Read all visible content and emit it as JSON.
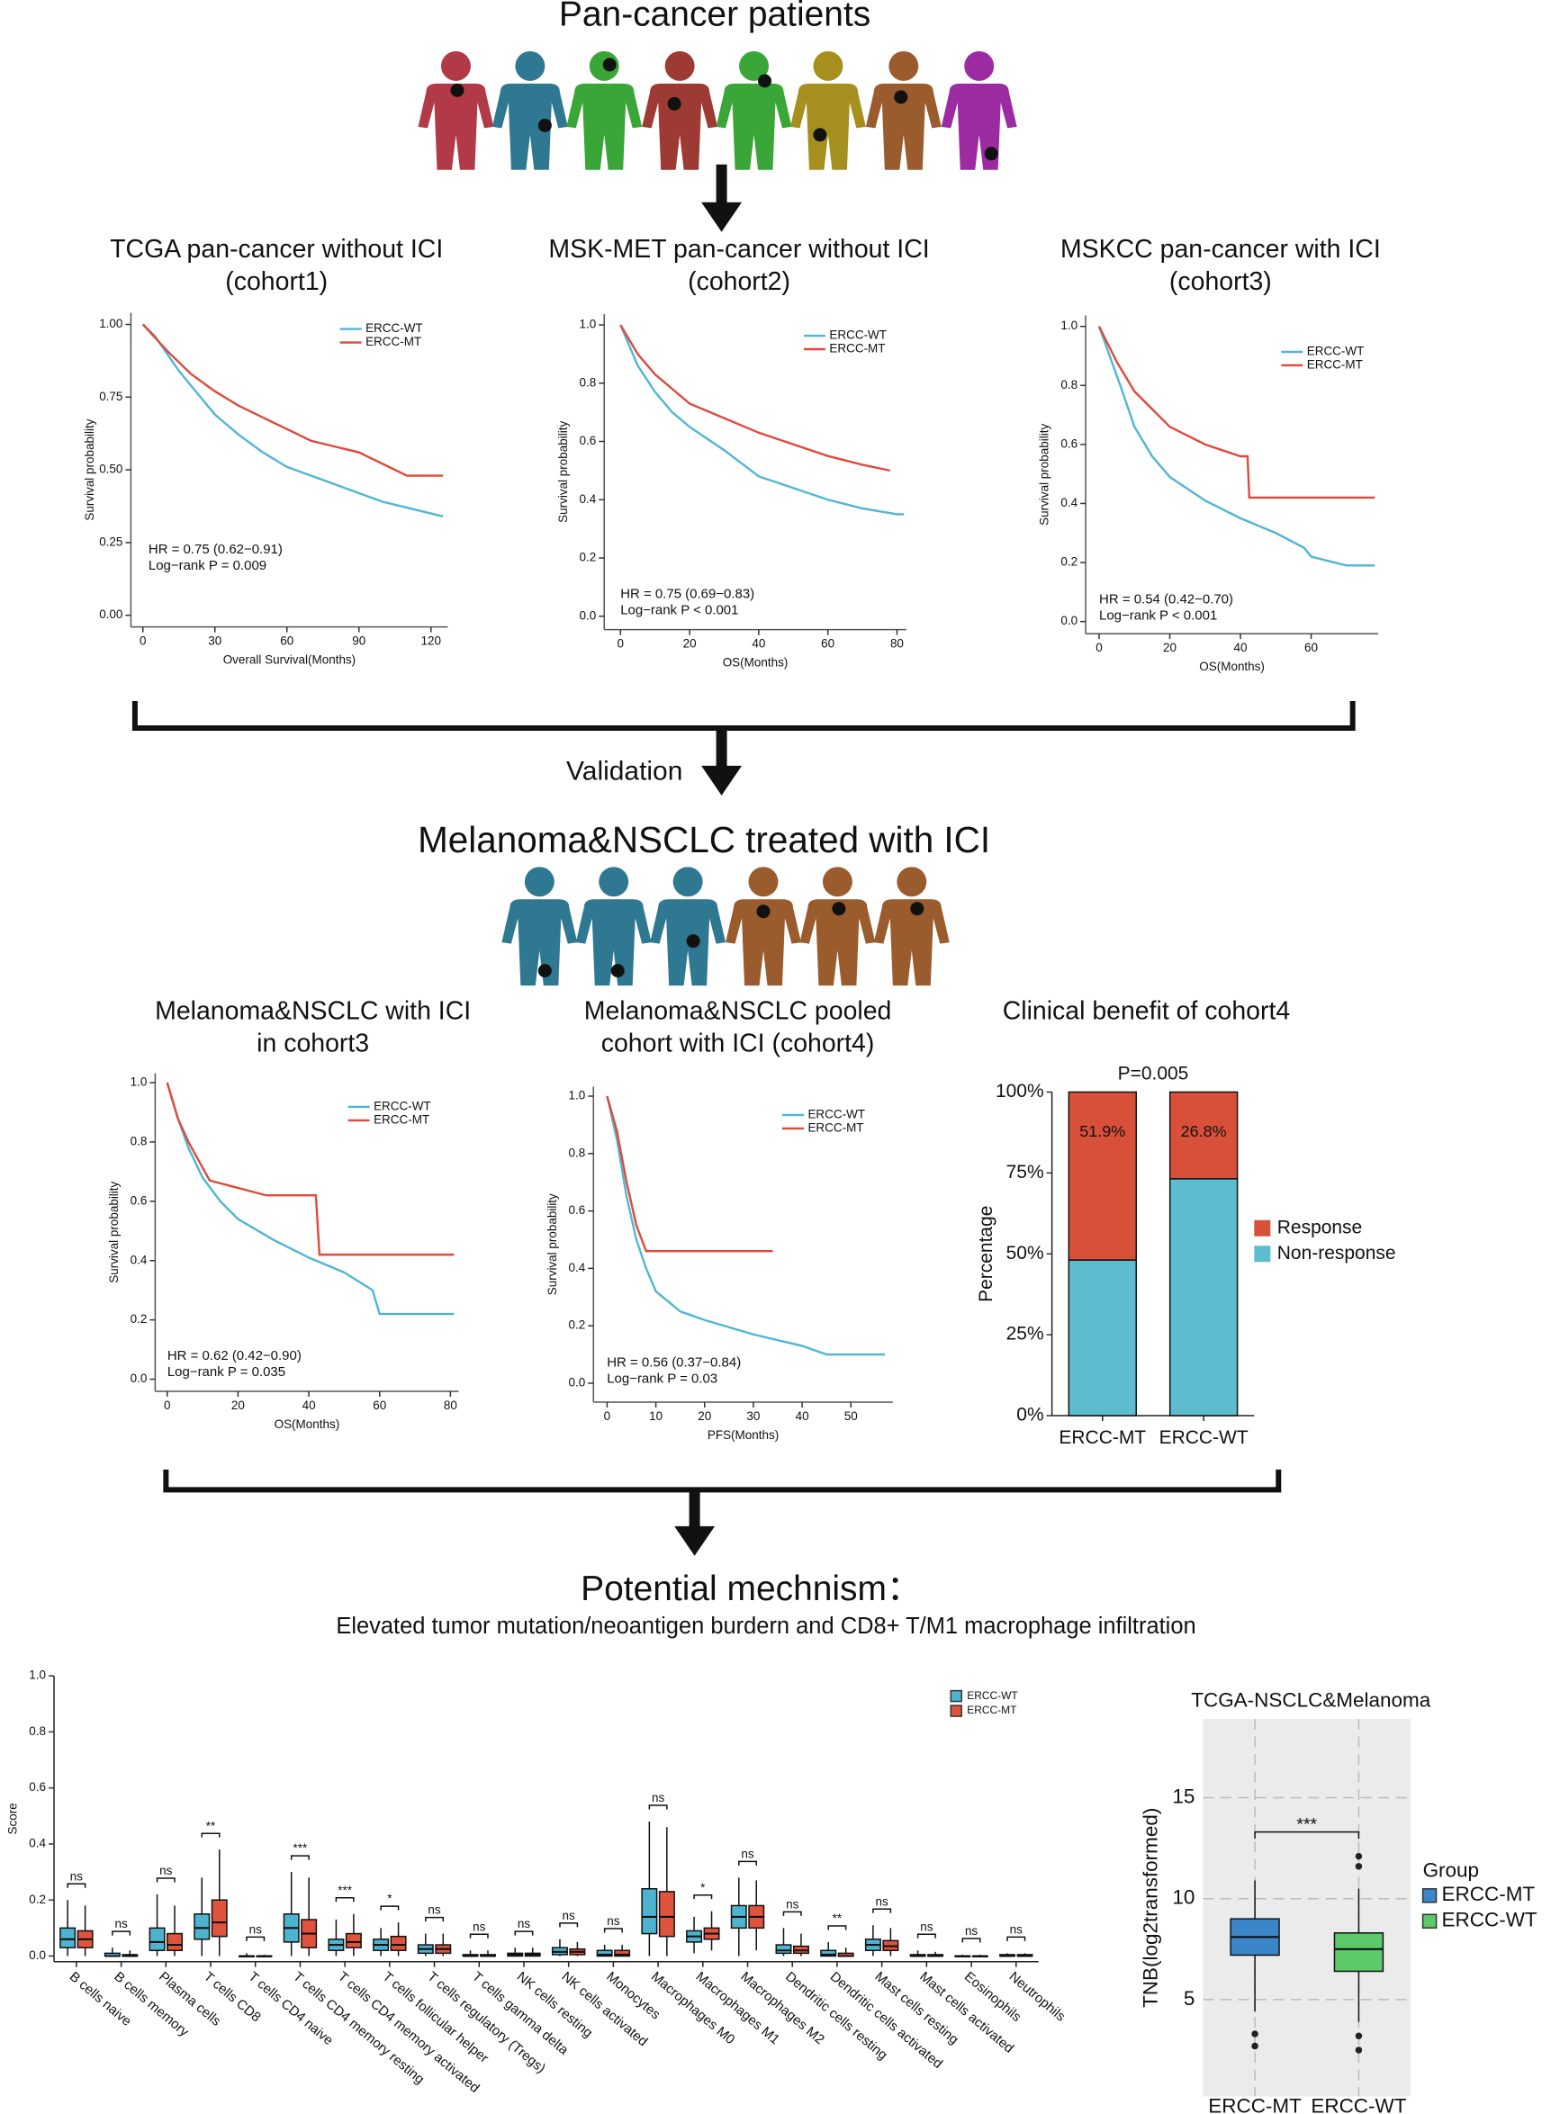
{
  "headings": {
    "top": "Pan-cancer patients",
    "validation": "Validation",
    "middle": "Melanoma&NSCLC treated with ICI",
    "mechanism": "Potential mechnism：",
    "mechanism_subtitle": "Elevated tumor mutation/neoantigen burdern and CD8+ T/M1 macrophage infiltration"
  },
  "chart_data": [
    {
      "type": "line",
      "title": [
        "TCGA pan-cancer without ICI",
        "(cohort1)"
      ],
      "xlabel": "Overall Survival(Months)",
      "ylabel": "Survival probability",
      "xlim": [
        -5,
        127
      ],
      "ylim": [
        -0.04,
        1.04
      ],
      "xticks": [
        0,
        30,
        60,
        90,
        120
      ],
      "yticks": [
        {
          "value": 0,
          "label": "0.00"
        },
        0.25,
        {
          "value": 0.5,
          "label": "0.50"
        },
        0.75,
        {
          "value": 1,
          "label": "1.00"
        }
      ],
      "series": [
        {
          "name": "ERCC-WT",
          "color": "#4fb6d3",
          "x": [
            0,
            5,
            10,
            15,
            20,
            30,
            40,
            50,
            60,
            70,
            80,
            90,
            100,
            110,
            120,
            125
          ],
          "values": [
            1,
            0.96,
            0.9,
            0.84,
            0.79,
            0.69,
            0.62,
            0.56,
            0.51,
            0.48,
            0.45,
            0.42,
            0.39,
            0.37,
            0.35,
            0.34
          ]
        },
        {
          "name": "ERCC-MT",
          "color": "#e0493a",
          "x": [
            0,
            10,
            20,
            30,
            40,
            50,
            60,
            70,
            80,
            90,
            100,
            110,
            125
          ],
          "values": [
            1,
            0.91,
            0.83,
            0.77,
            0.72,
            0.68,
            0.64,
            0.6,
            0.58,
            0.56,
            0.52,
            0.48,
            0.48
          ]
        }
      ],
      "annotations": [
        "HR = 0.75 (0.62−0.91)",
        "Log−rank P = 0.009"
      ]
    },
    {
      "type": "line",
      "title": [
        "MSK-MET pan-cancer without ICI",
        "(cohort2)"
      ],
      "xlabel": "OS(Months)",
      "ylabel": "Survival probability",
      "xlim": [
        -4.7,
        82.7
      ],
      "ylim": [
        -0.046,
        1.037
      ],
      "xticks": [
        0,
        20,
        40,
        60,
        80
      ],
      "yticks": [
        {
          "value": 0,
          "label": "0.0"
        },
        0.2,
        0.4,
        0.6,
        0.8,
        {
          "value": 1,
          "label": "1.0"
        }
      ],
      "series": [
        {
          "name": "ERCC-WT",
          "color": "#4fb6d3",
          "x": [
            0,
            5,
            10,
            15,
            20,
            30,
            40,
            50,
            60,
            70,
            80,
            82
          ],
          "values": [
            1,
            0.86,
            0.77,
            0.7,
            0.65,
            0.57,
            0.48,
            0.44,
            0.4,
            0.37,
            0.35,
            0.35
          ]
        },
        {
          "name": "ERCC-MT",
          "color": "#e0493a",
          "x": [
            0,
            5,
            10,
            20,
            30,
            40,
            50,
            60,
            70,
            78
          ],
          "values": [
            1,
            0.9,
            0.83,
            0.73,
            0.68,
            0.63,
            0.59,
            0.55,
            0.52,
            0.5
          ]
        }
      ],
      "annotations": [
        "HR = 0.75 (0.69−0.83)",
        "Log−rank P < 0.001"
      ]
    },
    {
      "type": "line",
      "title": [
        "MSKCC pan-cancer with ICI",
        "(cohort3)"
      ],
      "xlabel": "OS(Months)",
      "ylabel": "Survival probability",
      "xlim": [
        -3.8,
        79
      ],
      "ylim": [
        -0.041,
        1.037
      ],
      "xticks": [
        0,
        20,
        40,
        60
      ],
      "yticks": [
        {
          "value": 0,
          "label": "0.0"
        },
        0.2,
        0.4,
        0.6,
        0.8,
        {
          "value": 1,
          "label": "1.0"
        }
      ],
      "series": [
        {
          "name": "ERCC-WT",
          "color": "#4fb6d3",
          "x": [
            0,
            3,
            6,
            10,
            15,
            20,
            30,
            40,
            50,
            58,
            60,
            70,
            78
          ],
          "values": [
            1,
            0.9,
            0.8,
            0.66,
            0.56,
            0.49,
            0.41,
            0.35,
            0.3,
            0.25,
            0.22,
            0.19,
            0.19
          ]
        },
        {
          "name": "ERCC-MT",
          "color": "#e0493a",
          "x": [
            0,
            5,
            10,
            15,
            20,
            30,
            40,
            42,
            42.5,
            78
          ],
          "values": [
            1,
            0.88,
            0.78,
            0.72,
            0.66,
            0.6,
            0.56,
            0.56,
            0.42,
            0.42
          ]
        }
      ],
      "annotations": [
        "HR = 0.54 (0.42−0.70)",
        "Log−rank P < 0.001"
      ]
    },
    {
      "type": "line",
      "title": [
        "Melanoma&NSCLC with ICI",
        "in cohort3"
      ],
      "xlabel": "OS(Months)",
      "ylabel": "Survival probability",
      "xlim": [
        -3.4,
        82.3
      ],
      "ylim": [
        -0.041,
        1.032
      ],
      "xticks": [
        0,
        20,
        40,
        60,
        80
      ],
      "yticks": [
        {
          "value": 0,
          "label": "0.0"
        },
        0.2,
        0.4,
        0.6,
        0.8,
        {
          "value": 1,
          "label": "1.0"
        }
      ],
      "series": [
        {
          "name": "ERCC-WT",
          "color": "#4fb6d3",
          "x": [
            0,
            3,
            6,
            10,
            15,
            20,
            30,
            40,
            50,
            58,
            60,
            81
          ],
          "values": [
            1,
            0.88,
            0.78,
            0.68,
            0.6,
            0.54,
            0.47,
            0.41,
            0.36,
            0.3,
            0.22,
            0.22
          ]
        },
        {
          "name": "ERCC-MT",
          "color": "#e0493a",
          "x": [
            0,
            3,
            6,
            12,
            28,
            42,
            43,
            81
          ],
          "values": [
            1,
            0.88,
            0.8,
            0.67,
            0.62,
            0.62,
            0.42,
            0.42
          ]
        }
      ],
      "annotations": [
        "HR = 0.62 (0.42−0.90)",
        "Log−rank P = 0.035"
      ]
    },
    {
      "type": "line",
      "title": [
        "Melanoma&NSCLC pooled",
        "cohort with ICI (cohort4)"
      ],
      "xlabel": "PFS(Months)",
      "ylabel": "Survival probability",
      "xlim": [
        -2.8,
        58.6
      ],
      "ylim": [
        -0.066,
        1.033
      ],
      "xticks": [
        0,
        10,
        20,
        30,
        40,
        50
      ],
      "yticks": [
        {
          "value": 0,
          "label": "0.0"
        },
        0.2,
        0.4,
        0.6,
        0.8,
        {
          "value": 1,
          "label": "1.0"
        }
      ],
      "series": [
        {
          "name": "ERCC-WT",
          "color": "#4fb6d3",
          "x": [
            0,
            2,
            4,
            6,
            8,
            10,
            15,
            20,
            30,
            40,
            45,
            57
          ],
          "values": [
            1,
            0.85,
            0.65,
            0.5,
            0.4,
            0.32,
            0.25,
            0.22,
            0.17,
            0.13,
            0.1,
            0.1
          ]
        },
        {
          "name": "ERCC-MT",
          "color": "#e0493a",
          "x": [
            0,
            2,
            4,
            6,
            8,
            34
          ],
          "values": [
            1,
            0.88,
            0.7,
            0.55,
            0.46,
            0.46
          ]
        }
      ],
      "annotations": [
        "HR = 0.56 (0.37−0.84)",
        "Log−rank P = 0.03"
      ]
    },
    {
      "type": "bar",
      "stacked": true,
      "title": "Clinical benefit of cohort4",
      "annotation": "P=0.005",
      "ylabel": "Percentage",
      "categories": [
        "ERCC-MT",
        "ERCC-WT"
      ],
      "ylim": [
        0,
        100
      ],
      "yticks": [
        {
          "value": 0,
          "label": "0%"
        },
        {
          "value": 25,
          "label": "25%"
        },
        {
          "value": 50,
          "label": "50%"
        },
        {
          "value": 75,
          "label": "75%"
        },
        {
          "value": 100,
          "label": "100%"
        }
      ],
      "series": [
        {
          "name": "Non-response",
          "color": "#5dbdcf",
          "values": [
            48.1,
            73.2
          ]
        },
        {
          "name": "Response",
          "color": "#d9503a",
          "values": [
            51.9,
            26.8
          ],
          "value_labels": [
            "51.9%",
            "26.8%"
          ]
        }
      ]
    },
    {
      "type": "box",
      "ylabel": "Score",
      "ylim": [
        -0.02,
        1.0
      ],
      "yticks": [
        {
          "value": 0,
          "label": "0.0"
        },
        0.2,
        0.4,
        0.6,
        0.8,
        {
          "value": 1,
          "label": "1.0"
        }
      ],
      "categories": [
        "B cells naive",
        "B cells memory",
        "Plasma cells",
        "T cells CD8",
        "T cells CD4 naive",
        "T cells CD4 memory resting",
        "T cells CD4 memory activated",
        "T cells follicular helper",
        "T cells regulatory (Tregs)",
        "T cells gamma delta",
        "NK cells resting",
        "NK cells activated",
        "Monocytes",
        "Macrophages M0",
        "Macrophages M1",
        "Macrophages M2",
        "Dendritic cells resting",
        "Dendritic cells activated",
        "Mast cells resting",
        "Mast cells activated",
        "Eosinophils",
        "Neutrophils"
      ],
      "category_colors": [
        "#111",
        "#111",
        "#111",
        "#5aa02c",
        "#111",
        "#111",
        "#5aa02c",
        "#111",
        "#111",
        "#111",
        "#111",
        "#111",
        "#111",
        "#111",
        "#5aa02c",
        "#111",
        "#111",
        "#111",
        "#111",
        "#111",
        "#111",
        "#111"
      ],
      "significance": [
        "ns",
        "ns",
        "ns",
        "**",
        "ns",
        "***",
        "***",
        "*",
        "ns",
        "ns",
        "ns",
        "ns",
        "ns",
        "ns",
        "*",
        "ns",
        "ns",
        "**",
        "ns",
        "ns",
        "ns",
        "ns"
      ],
      "series": [
        {
          "name": "ERCC-WT",
          "color": "#4eb3cf",
          "boxes": [
            [
              0,
              0.03,
              0.06,
              0.1,
              0.2
            ],
            [
              0,
              0,
              0,
              0.01,
              0.03
            ],
            [
              0,
              0.02,
              0.05,
              0.1,
              0.22
            ],
            [
              0,
              0.06,
              0.1,
              0.15,
              0.28
            ],
            [
              0,
              0,
              0,
              0,
              0.01
            ],
            [
              0,
              0.05,
              0.1,
              0.15,
              0.3
            ],
            [
              0,
              0.02,
              0.04,
              0.06,
              0.13
            ],
            [
              0,
              0.02,
              0.04,
              0.06,
              0.1
            ],
            [
              0,
              0.01,
              0.025,
              0.04,
              0.08
            ],
            [
              0,
              0,
              0,
              0.005,
              0.02
            ],
            [
              0,
              0,
              0.005,
              0.01,
              0.03
            ],
            [
              0,
              0.005,
              0.015,
              0.03,
              0.06
            ],
            [
              0,
              0,
              0.005,
              0.02,
              0.04
            ],
            [
              0,
              0.08,
              0.14,
              0.24,
              0.48
            ],
            [
              0.01,
              0.05,
              0.07,
              0.09,
              0.14
            ],
            [
              0,
              0.1,
              0.14,
              0.18,
              0.28
            ],
            [
              0,
              0.01,
              0.02,
              0.04,
              0.1
            ],
            [
              0,
              0,
              0.005,
              0.02,
              0.05
            ],
            [
              0,
              0.02,
              0.04,
              0.06,
              0.11
            ],
            [
              0,
              0,
              0,
              0.005,
              0.02
            ],
            [
              0,
              0,
              0,
              0,
              0.005
            ],
            [
              0,
              0,
              0,
              0.005,
              0.01
            ]
          ]
        },
        {
          "name": "ERCC-MT",
          "color": "#e0533d",
          "boxes": [
            [
              0,
              0.03,
              0.06,
              0.09,
              0.18
            ],
            [
              0,
              0,
              0,
              0.005,
              0.02
            ],
            [
              0,
              0.02,
              0.04,
              0.08,
              0.18
            ],
            [
              0,
              0.07,
              0.12,
              0.2,
              0.38
            ],
            [
              0,
              0,
              0,
              0,
              0.005
            ],
            [
              0,
              0.03,
              0.08,
              0.13,
              0.28
            ],
            [
              0,
              0.03,
              0.05,
              0.08,
              0.15
            ],
            [
              0,
              0.02,
              0.04,
              0.07,
              0.12
            ],
            [
              0,
              0.01,
              0.025,
              0.04,
              0.08
            ],
            [
              0,
              0,
              0,
              0.005,
              0.02
            ],
            [
              0,
              0,
              0.005,
              0.01,
              0.03
            ],
            [
              0,
              0.005,
              0.015,
              0.025,
              0.05
            ],
            [
              0,
              0,
              0.005,
              0.02,
              0.04
            ],
            [
              0,
              0.07,
              0.14,
              0.23,
              0.46
            ],
            [
              0.02,
              0.06,
              0.08,
              0.1,
              0.16
            ],
            [
              0.02,
              0.1,
              0.14,
              0.18,
              0.27
            ],
            [
              0,
              0.01,
              0.02,
              0.035,
              0.08
            ],
            [
              0,
              0,
              0,
              0.01,
              0.03
            ],
            [
              0,
              0.02,
              0.035,
              0.055,
              0.1
            ],
            [
              0,
              0,
              0,
              0.005,
              0.015
            ],
            [
              0,
              0,
              0,
              0,
              0.005
            ],
            [
              0,
              0,
              0,
              0.005,
              0.01
            ]
          ]
        }
      ]
    },
    {
      "type": "box",
      "title": "TCGA-NSCLC&Melanoma",
      "ylabel": "TNB(log2transformed)",
      "legend_title": "Group",
      "background": "#ebebeb",
      "grid": true,
      "ylim": [
        0.2,
        18.9
      ],
      "yticks": [
        5,
        10,
        15
      ],
      "categories": [
        "ERCC-MT",
        "ERCC-WT"
      ],
      "significance": "***",
      "series": [
        {
          "name": "ERCC-MT",
          "color": "#3b86c8",
          "boxes": [
            [
              4.4,
              7.2,
              8.1,
              9.0,
              10.9
            ],
            null
          ],
          "outliers": [
            [
              3.3,
              2.7
            ],
            null
          ]
        },
        {
          "name": "ERCC-WT",
          "color": "#5cc96a",
          "boxes": [
            null,
            [
              3.9,
              6.4,
              7.5,
              8.3,
              10.5
            ]
          ],
          "outliers": [
            null,
            [
              12.1,
              11.6,
              3.2,
              2.5
            ]
          ]
        }
      ]
    }
  ]
}
